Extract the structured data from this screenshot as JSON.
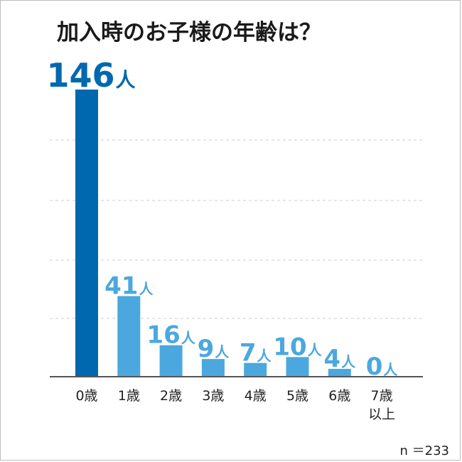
{
  "chart_data": {
    "type": "bar",
    "title": "加入時のお子様の年齢は？",
    "categories": [
      "0歳",
      "1歳",
      "2歳",
      "3歳",
      "4歳",
      "5歳",
      "6歳",
      "7歳\n以上"
    ],
    "values": [
      146,
      41,
      16,
      9,
      7,
      10,
      4,
      0
    ],
    "value_unit": "人",
    "ylim": [
      0,
      146
    ],
    "grid": true,
    "xlabel": "",
    "ylabel": ""
  },
  "sample_size": "n ＝233",
  "colors": {
    "highlight_bar": "#0068AE",
    "bar": "#4BA8DE",
    "highlight_label": "#0068AE",
    "label": "#4BA8DE",
    "axis": "#555555",
    "grid": "#cfcfcf"
  }
}
